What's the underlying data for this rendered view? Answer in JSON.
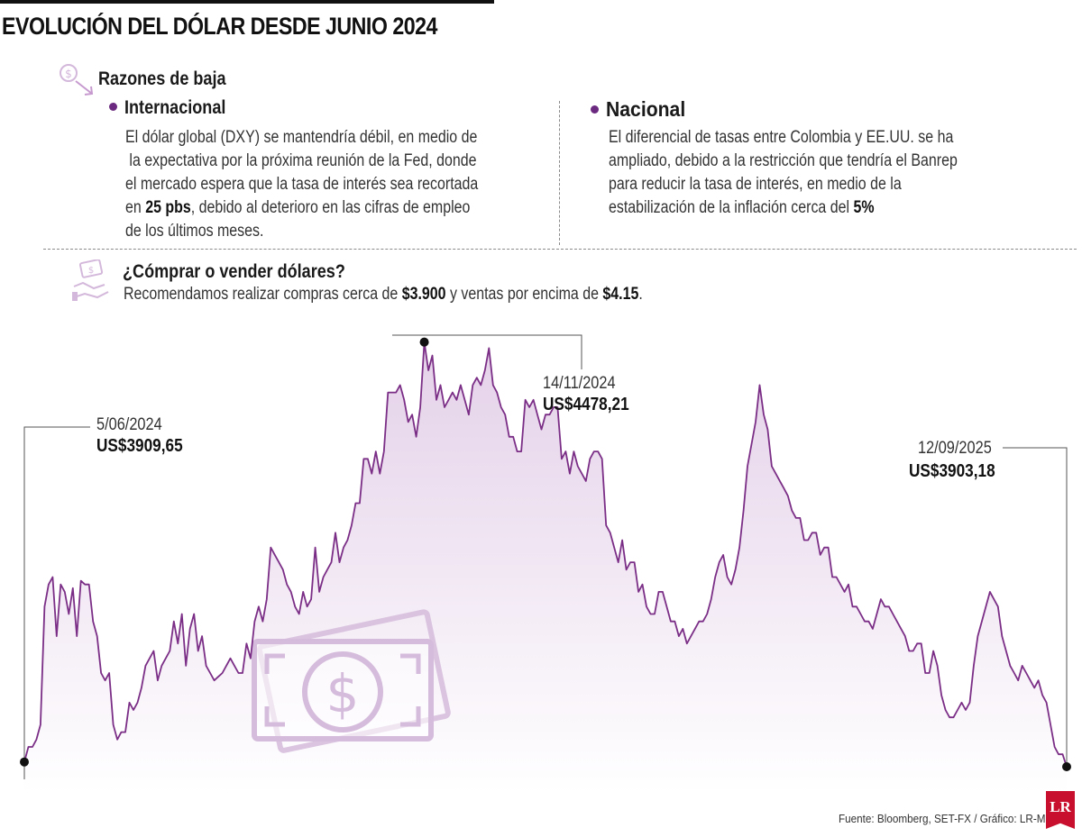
{
  "title": "EVOLUCIÓN DEL DÓLAR DESDE JUNIO 2024",
  "razones": {
    "heading": "Razones de baja",
    "internacional": {
      "heading": "Internacional",
      "text_1": "El dólar global (DXY) se mantendría débil, en medio de",
      "text_2": " la expectativa por la próxima reunión de la Fed, donde",
      "text_3": "el mercado espera que la tasa de interés sea recortada",
      "text_4a": "en ",
      "text_4b": "25 pbs",
      "text_4c": ", debido al deterioro en las cifras de empleo",
      "text_5": "de los últimos meses."
    },
    "nacional": {
      "heading": "Nacional",
      "text_1": "El diferencial de tasas entre Colombia y EE.UU. se ha",
      "text_2": "ampliado, debido a la restricción que tendría el Banrep",
      "text_3": "para reducir la tasa de interés, en medio de la",
      "text_4a": "estabilización de la inflación cerca del ",
      "text_4b": "5%"
    }
  },
  "recomendacion": {
    "heading": "¿Cómprar o vender dólares?",
    "text_a": "Recomendamos realizar compras cerca de ",
    "text_b": "$3.900",
    "text_c": " y ventas por encima de ",
    "text_d": "$4.15",
    "text_e": "."
  },
  "source": "Fuente:  Bloomberg, SET-FX / Gráfico: LR-MB",
  "logo": "LR",
  "colors": {
    "line": "#7b2e86",
    "fill_top": "#e6d3ea",
    "fill_bottom": "#ffffff",
    "accent": "#6b2a7f",
    "icon": "#dcc6e2"
  },
  "chart_data": {
    "type": "area",
    "title": "EVOLUCIÓN DEL DÓLAR DESDE JUNIO 2024",
    "xlabel": "",
    "ylabel": "US$",
    "ylim": [
      3880,
      4490
    ],
    "grid": false,
    "x_start": "5/06/2024",
    "x_end": "12/09/2025",
    "values": [
      3909.65,
      3930,
      3930,
      3940,
      3960,
      4120,
      4150,
      4160,
      4080,
      4150,
      4140,
      4110,
      4145,
      4080,
      4155,
      4150,
      4150,
      4100,
      4080,
      4030,
      4020,
      4030,
      3960,
      3940,
      3950,
      3950,
      3990,
      3980,
      3990,
      4010,
      4040,
      4050,
      4060,
      4020,
      4040,
      4050,
      4060,
      4100,
      4070,
      4110,
      4040,
      4090,
      4110,
      4060,
      4080,
      4040,
      4030,
      4020,
      4025,
      4030,
      4040,
      4050,
      4040,
      4030,
      4030,
      4070,
      4050,
      4100,
      4120,
      4100,
      4130,
      4200,
      4190,
      4180,
      4170,
      4150,
      4140,
      4120,
      4110,
      4140,
      4120,
      4130,
      4200,
      4140,
      4160,
      4170,
      4180,
      4220,
      4180,
      4200,
      4210,
      4230,
      4260,
      4260,
      4320,
      4320,
      4300,
      4330,
      4300,
      4330,
      4410,
      4410,
      4410,
      4420,
      4400,
      4370,
      4380,
      4350,
      4390,
      4478.21,
      4440,
      4460,
      4400,
      4420,
      4390,
      4400,
      4410,
      4400,
      4420,
      4400,
      4380,
      4420,
      4430,
      4420,
      4440,
      4470,
      4420,
      4410,
      4390,
      4380,
      4350,
      4350,
      4330,
      4330,
      4400,
      4390,
      4400,
      4380,
      4360,
      4380,
      4380,
      4390,
      4390,
      4320,
      4330,
      4300,
      4330,
      4310,
      4300,
      4290,
      4320,
      4330,
      4330,
      4320,
      4230,
      4220,
      4200,
      4180,
      4210,
      4170,
      4180,
      4180,
      4140,
      4150,
      4120,
      4110,
      4110,
      4140,
      4140,
      4120,
      4100,
      4100,
      4080,
      4090,
      4070,
      4080,
      4090,
      4100,
      4100,
      4110,
      4130,
      4160,
      4180,
      4190,
      4160,
      4150,
      4170,
      4200,
      4250,
      4310,
      4340,
      4370,
      4420,
      4380,
      4360,
      4310,
      4300,
      4290,
      4280,
      4270,
      4250,
      4240,
      4240,
      4210,
      4210,
      4220,
      4220,
      4190,
      4200,
      4200,
      4160,
      4160,
      4150,
      4140,
      4150,
      4120,
      4120,
      4110,
      4100,
      4100,
      4090,
      4110,
      4130,
      4120,
      4120,
      4110,
      4100,
      4090,
      4080,
      4060,
      4060,
      4070,
      4070,
      4030,
      4030,
      4060,
      4040,
      4000,
      3980,
      3970,
      3970,
      3980,
      3990,
      3980,
      3990,
      4040,
      4080,
      4100,
      4120,
      4140,
      4130,
      4120,
      4080,
      4060,
      4040,
      4030,
      4020,
      4040,
      4030,
      4020,
      4010,
      4020,
      4000,
      3990,
      3960,
      3930,
      3920,
      3920,
      3903.18
    ]
  },
  "annotations": [
    {
      "date": "5/06/2024",
      "value": "US$3909,65"
    },
    {
      "date": "14/11/2024",
      "value": "US$4478,21"
    },
    {
      "date": "12/09/2025",
      "value": "US$3903,18"
    }
  ]
}
